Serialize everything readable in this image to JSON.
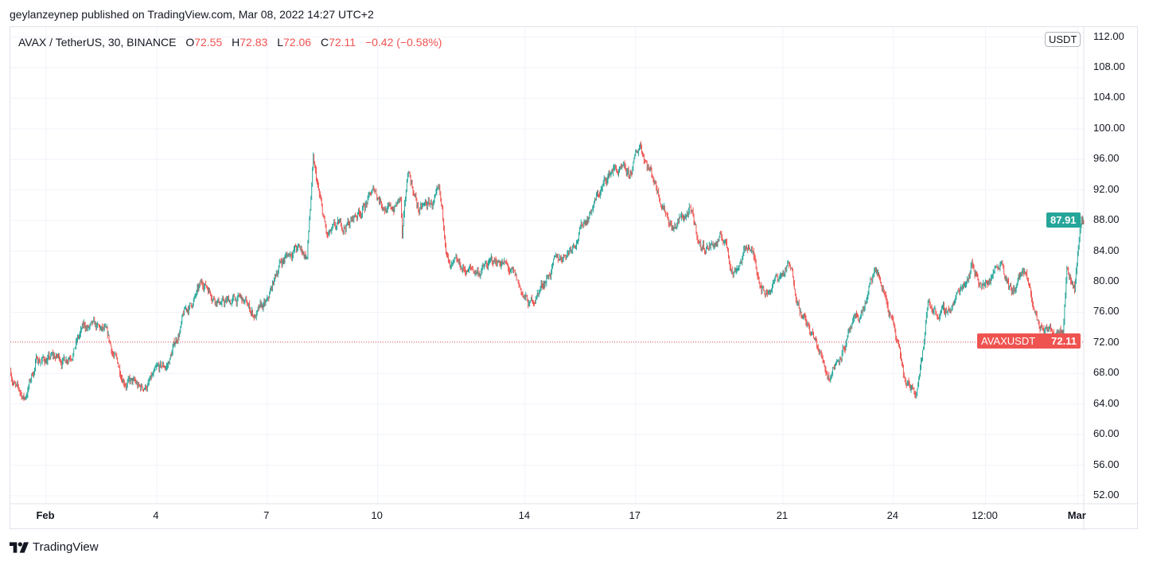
{
  "published": "geylanzeynep published on TradingView.com, Mar 08, 2022 14:27 UTC+2",
  "legend": {
    "symbol": "AVAX / TetherUS, 30, BINANCE",
    "open_label": "O",
    "open": "72.55",
    "high_label": "H",
    "high": "72.83",
    "low_label": "L",
    "low": "72.06",
    "close_label": "C",
    "close": "72.11",
    "change": "−0.42 (−0.58%)"
  },
  "unit_badge": "USDT",
  "last_price_label": "87.91",
  "crosshair_label": {
    "symbol": "AVAXUSDT",
    "price": "72.11"
  },
  "logo_text": "TradingView",
  "colors": {
    "up": "#26a69a",
    "down": "#ef5350",
    "grid": "#f0f3fa",
    "last_price": "#26a69a",
    "crosshair": "#ef5350"
  },
  "chart_data": {
    "type": "candlestick",
    "interval": "30 minutes",
    "ylim": [
      50,
      114
    ],
    "y_ticks": [
      "52.00",
      "56.00",
      "60.00",
      "64.00",
      "68.00",
      "72.00",
      "76.00",
      "80.00",
      "84.00",
      "88.00",
      "92.00",
      "96.00",
      "100.00",
      "104.00",
      "108.00",
      "112.00"
    ],
    "x_ticks": [
      {
        "label": "Feb",
        "t": "2022-02-01T00:00"
      },
      {
        "label": "4",
        "t": "2022-02-04T00:00"
      },
      {
        "label": "7",
        "t": "2022-02-07T00:00"
      },
      {
        "label": "10",
        "t": "2022-02-10T00:00"
      },
      {
        "label": "14",
        "t": "2022-02-14T00:00"
      },
      {
        "label": "17",
        "t": "2022-02-17T00:00"
      },
      {
        "label": "21",
        "t": "2022-02-21T00:00"
      },
      {
        "label": "24",
        "t": "2022-02-24T00:00"
      },
      {
        "label": "12:00",
        "t": "2022-02-26T12:00"
      },
      {
        "label": "Mar",
        "t": "2022-03-01T00:00"
      }
    ],
    "xlim": [
      "2022-01-31T00:40",
      "2022-03-01T05:00"
    ],
    "last_price": 87.91,
    "crosshair_price": 72.11,
    "price_path": [
      [
        "2022-01-31T01:00",
        68.3
      ],
      [
        "2022-01-31T05:00",
        65.7
      ],
      [
        "2022-01-31T10:00",
        64.7
      ],
      [
        "2022-01-31T18:00",
        69.9
      ],
      [
        "2022-02-01T12:00",
        69.9
      ],
      [
        "2022-02-02T01:00",
        74.0
      ],
      [
        "2022-02-02T14:00",
        73.0
      ],
      [
        "2022-02-03T00:00",
        68.3
      ],
      [
        "2022-02-03T13:00",
        65.7
      ],
      [
        "2022-02-04T07:00",
        68.9
      ],
      [
        "2022-02-04T18:00",
        75.6
      ],
      [
        "2022-02-05T07:00",
        79.8
      ],
      [
        "2022-02-05T20:00",
        77.2
      ],
      [
        "2022-02-06T06:00",
        77.7
      ],
      [
        "2022-02-06T16:00",
        75.6
      ],
      [
        "2022-02-07T00:00",
        76.7
      ],
      [
        "2022-02-07T08:00",
        82.4
      ],
      [
        "2022-02-07T18:00",
        84.5
      ],
      [
        "2022-02-08T02:00",
        83.4
      ],
      [
        "2022-02-08T06:00",
        95.4
      ],
      [
        "2022-02-08T10:00",
        90.7
      ],
      [
        "2022-02-08T15:00",
        85.5
      ],
      [
        "2022-02-09T07:00",
        88.0
      ],
      [
        "2022-02-09T22:00",
        91.8
      ],
      [
        "2022-02-10T08:30",
        89.2
      ],
      [
        "2022-02-10T15:00",
        90.7
      ],
      [
        "2022-02-10T16:00",
        85.5
      ],
      [
        "2022-02-10T20:00",
        94.4
      ],
      [
        "2022-02-11T03:00",
        89.2
      ],
      [
        "2022-02-11T16:00",
        90.7
      ],
      [
        "2022-02-11T23:00",
        81.4
      ],
      [
        "2022-02-12T17:30",
        81.4
      ],
      [
        "2022-02-13T09:00",
        82.9
      ],
      [
        "2022-02-13T19:30",
        79.3
      ],
      [
        "2022-02-14T03:00",
        76.7
      ],
      [
        "2022-02-14T16:00",
        81.4
      ],
      [
        "2022-02-15T05:00",
        84.5
      ],
      [
        "2022-02-15T18:00",
        89.2
      ],
      [
        "2022-02-16T09:30",
        94.9
      ],
      [
        "2022-02-16T20:00",
        93.3
      ],
      [
        "2022-02-17T03:00",
        98.0
      ],
      [
        "2022-02-17T11:30",
        93.8
      ],
      [
        "2022-02-18T00:30",
        87.1
      ],
      [
        "2022-02-18T11:00",
        89.2
      ],
      [
        "2022-02-18T18:30",
        84.5
      ],
      [
        "2022-02-19T10:00",
        85.5
      ],
      [
        "2022-02-19T15:30",
        81.4
      ],
      [
        "2022-02-20T02:00",
        84.9
      ],
      [
        "2022-02-20T12:00",
        78.8
      ],
      [
        "2022-02-21T04:00",
        81.9
      ],
      [
        "2022-02-21T14:00",
        75.1
      ],
      [
        "2022-02-22T06:00",
        67.8
      ],
      [
        "2022-02-22T16:00",
        72.0
      ],
      [
        "2022-02-23T02:00",
        75.1
      ],
      [
        "2022-02-23T13:00",
        81.4
      ],
      [
        "2022-02-23T23:00",
        75.1
      ],
      [
        "2022-02-24T08:30",
        65.7
      ],
      [
        "2022-02-24T15:00",
        66.3
      ],
      [
        "2022-02-24T20:00",
        72.0
      ],
      [
        "2022-02-24T22:30",
        77.2
      ],
      [
        "2022-02-25T09:00",
        75.6
      ],
      [
        "2022-02-25T16:30",
        77.7
      ],
      [
        "2022-02-26T03:00",
        82.4
      ],
      [
        "2022-02-26T11:00",
        79.3
      ],
      [
        "2022-02-26T22:30",
        83.4
      ],
      [
        "2022-02-27T05:00",
        78.3
      ],
      [
        "2022-02-27T12:30",
        81.4
      ],
      [
        "2022-02-27T23:00",
        74.0
      ],
      [
        "2022-02-28T07:00",
        73.5
      ],
      [
        "2022-02-28T14:30",
        75.1
      ],
      [
        "2022-02-28T17:00",
        82.4
      ],
      [
        "2022-02-28T22:00",
        79.5
      ],
      [
        "2022-03-01T02:30",
        88.6
      ],
      [
        "2022-03-01T04:00",
        87.9
      ]
    ]
  }
}
